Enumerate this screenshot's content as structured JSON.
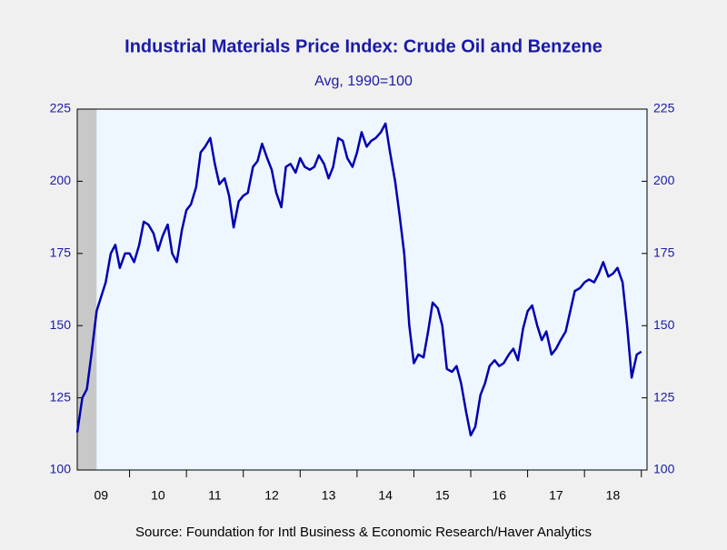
{
  "chart_data": {
    "type": "line",
    "title": "Industrial Materials Price Index: Crude Oil and Benzene",
    "subtitle": "Avg, 1990=100",
    "source": "Source:  Foundation for Intl Business & Economic Research/Haver Analytics",
    "x": [
      9.08,
      9.17,
      9.25,
      9.33,
      9.42,
      9.5,
      9.58,
      9.67,
      9.75,
      9.83,
      9.92,
      10,
      10.08,
      10.17,
      10.25,
      10.33,
      10.42,
      10.5,
      10.58,
      10.67,
      10.75,
      10.83,
      10.92,
      11,
      11.08,
      11.17,
      11.25,
      11.33,
      11.42,
      11.5,
      11.58,
      11.67,
      11.75,
      11.83,
      11.92,
      12,
      12.08,
      12.17,
      12.25,
      12.33,
      12.42,
      12.5,
      12.58,
      12.67,
      12.75,
      12.83,
      12.92,
      13,
      13.08,
      13.17,
      13.25,
      13.33,
      13.42,
      13.5,
      13.58,
      13.67,
      13.75,
      13.83,
      13.92,
      14,
      14.08,
      14.17,
      14.25,
      14.33,
      14.42,
      14.5,
      14.58,
      14.67,
      14.75,
      14.83,
      14.92,
      15,
      15.08,
      15.17,
      15.25,
      15.33,
      15.42,
      15.5,
      15.58,
      15.67,
      15.75,
      15.83,
      15.92,
      16,
      16.08,
      16.17,
      16.25,
      16.33,
      16.42,
      16.5,
      16.58,
      16.67,
      16.75,
      16.83,
      16.92,
      17,
      17.08,
      17.17,
      17.25,
      17.33,
      17.42,
      17.5,
      17.58,
      17.67,
      17.75,
      17.83,
      17.92,
      18,
      18.08,
      18.17,
      18.25,
      18.33,
      18.42,
      18.5,
      18.58,
      18.67,
      18.75,
      18.83,
      18.92,
      19
    ],
    "series": [
      {
        "color": "#0000b0",
        "values": [
          113,
          125,
          128,
          140,
          155,
          160,
          165,
          175,
          178,
          170,
          175,
          175,
          172,
          178,
          186,
          185,
          182,
          176,
          181,
          185,
          175,
          172,
          183,
          190,
          192,
          198,
          210,
          212,
          215,
          206,
          199,
          201,
          195,
          184,
          193,
          195,
          196,
          205,
          207,
          213,
          208,
          204,
          196,
          191,
          205,
          206,
          203,
          208,
          205,
          204,
          205,
          209,
          206,
          201,
          205,
          215,
          214,
          208,
          205,
          210,
          217,
          212,
          214,
          215,
          217,
          220,
          210,
          200,
          188,
          175,
          150,
          137,
          140,
          139,
          148,
          158,
          156,
          150,
          135,
          134,
          136,
          130,
          120,
          112,
          115,
          126,
          130,
          136,
          138,
          136,
          137,
          140,
          142,
          138,
          149,
          155,
          157,
          150,
          145,
          148,
          140,
          142,
          145,
          148,
          155,
          162,
          163,
          165,
          166,
          165,
          168,
          172,
          167,
          168,
          170,
          165,
          150,
          132,
          140,
          141
        ]
      }
    ],
    "xlim": [
      9.08,
      19.1
    ],
    "xticks": [
      {
        "value": 9.5,
        "label": "09"
      },
      {
        "value": 10.5,
        "label": "10"
      },
      {
        "value": 11.5,
        "label": "11"
      },
      {
        "value": 12.5,
        "label": "12"
      },
      {
        "value": 13.5,
        "label": "13"
      },
      {
        "value": 14.5,
        "label": "14"
      },
      {
        "value": 15.5,
        "label": "15"
      },
      {
        "value": 16.5,
        "label": "16"
      },
      {
        "value": 17.5,
        "label": "17"
      },
      {
        "value": 18.5,
        "label": "18"
      }
    ],
    "xtick_marks": [
      10,
      11,
      12,
      13,
      14,
      15,
      16,
      17,
      18,
      19
    ],
    "shaded_periods": [
      [
        9.08,
        9.42
      ]
    ],
    "ylim": [
      100,
      225
    ],
    "yticks": [
      100,
      125,
      150,
      175,
      200,
      225
    ]
  }
}
